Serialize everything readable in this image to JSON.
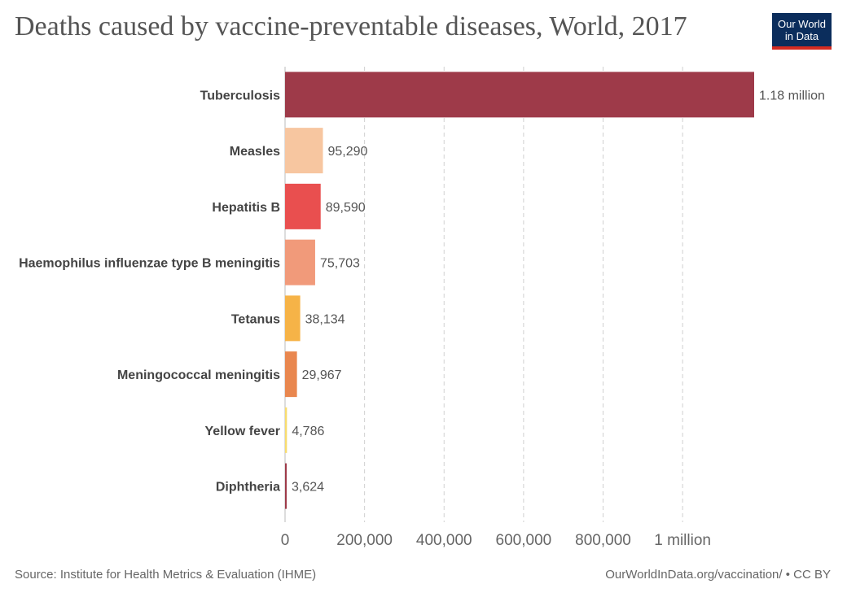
{
  "title": "Deaths caused by vaccine-preventable diseases, World, 2017",
  "logo": {
    "line1": "Our World",
    "line2": "in Data"
  },
  "footer": {
    "source": "Source: Institute for Health Metrics & Evaluation (IHME)",
    "credit": "OurWorldInData.org/vaccination/ • CC BY"
  },
  "chart_data": {
    "type": "bar",
    "orientation": "horizontal",
    "title": "Deaths caused by vaccine-preventable diseases, World, 2017",
    "categories": [
      "Tuberculosis",
      "Measles",
      "Hepatitis B",
      "Haemophilus influenzae type B meningitis",
      "Tetanus",
      "Meningococcal meningitis",
      "Yellow fever",
      "Diphtheria"
    ],
    "values": [
      1180000,
      95290,
      89590,
      75703,
      38134,
      29967,
      4786,
      3624
    ],
    "value_labels": [
      "1.18 million",
      "95,290",
      "89,590",
      "75,703",
      "38,134",
      "29,967",
      "4,786",
      "3,624"
    ],
    "colors": [
      "#9e3a49",
      "#f7c6a0",
      "#e94f4f",
      "#f19a7a",
      "#f6b347",
      "#e9874f",
      "#f7dc6f",
      "#9e3a49"
    ],
    "xlim": [
      0,
      1180000
    ],
    "xticks": [
      0,
      200000,
      400000,
      600000,
      800000,
      1000000
    ],
    "xtick_labels": [
      "0",
      "200,000",
      "400,000",
      "600,000",
      "800,000",
      "1 million"
    ],
    "grid": true
  }
}
